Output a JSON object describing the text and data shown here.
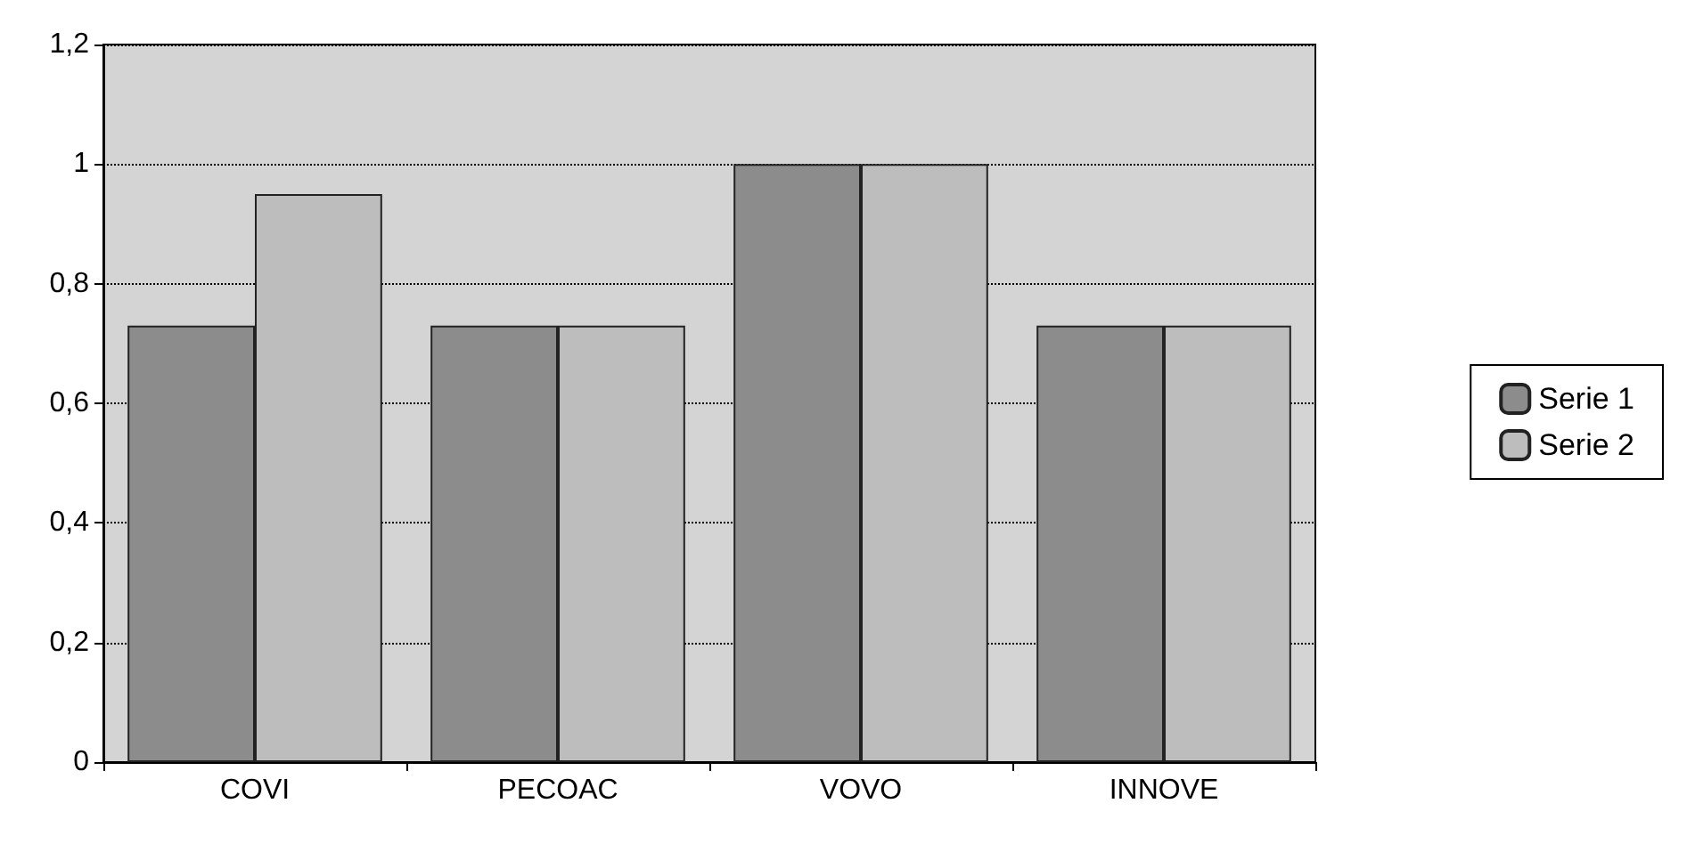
{
  "chart_data": {
    "type": "bar",
    "categories": [
      "COVI",
      "PECOAC",
      "VOVO",
      "INNOVE"
    ],
    "series": [
      {
        "name": "Serie 1",
        "color": "#8c8c8c",
        "values": [
          0.73,
          0.73,
          1.0,
          0.73
        ]
      },
      {
        "name": "Serie 2",
        "color": "#bdbdbd",
        "values": [
          0.95,
          0.73,
          1.0,
          0.73
        ]
      }
    ],
    "ylim": [
      0,
      1.2
    ],
    "yticks": [
      {
        "value": 0,
        "label": "0"
      },
      {
        "value": 0.2,
        "label": "0,2"
      },
      {
        "value": 0.4,
        "label": "0,4"
      },
      {
        "value": 0.6,
        "label": "0,6"
      },
      {
        "value": 0.8,
        "label": "0,8"
      },
      {
        "value": 1,
        "label": "1"
      },
      {
        "value": 1.2,
        "label": "1,2"
      }
    ],
    "grid": "y",
    "line_style": "dotted",
    "legend": "right"
  }
}
